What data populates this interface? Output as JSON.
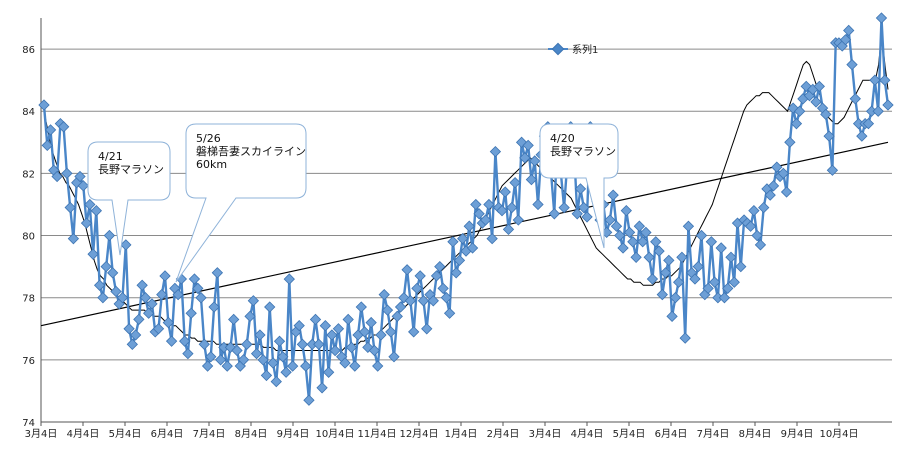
{
  "chart_data": {
    "type": "line",
    "title": "",
    "xlabel": "",
    "ylabel": "",
    "ylim": [
      74,
      87
    ],
    "yticks": [
      74,
      76,
      78,
      80,
      82,
      84,
      86
    ],
    "xtick_labels": [
      "3月4日",
      "4月4日",
      "5月4日",
      "6月4日",
      "7月4日",
      "8月4日",
      "9月4日",
      "10月4日",
      "11月4日",
      "12月4日",
      "1月4日",
      "2月4日",
      "3月4日",
      "4月4日",
      "5月4日",
      "6月4日",
      "7月4日",
      "8月4日",
      "9月4日",
      "10月4日"
    ],
    "grid": "horizontal",
    "legend": {
      "position": "top-center",
      "entries": [
        "系列1"
      ]
    },
    "series": [
      {
        "name": "系列1",
        "color": "#4a86c8",
        "marker": "diamond",
        "values": [
          84.2,
          82.9,
          83.4,
          82.1,
          81.9,
          83.6,
          83.5,
          82.0,
          80.9,
          79.9,
          81.7,
          81.9,
          81.6,
          80.4,
          81.0,
          79.4,
          80.8,
          78.4,
          78.0,
          79.0,
          80.0,
          78.8,
          78.2,
          77.8,
          78.0,
          79.7,
          77.0,
          76.5,
          76.8,
          77.3,
          78.4,
          78.0,
          77.5,
          77.8,
          76.9,
          77.0,
          78.1,
          78.7,
          77.2,
          76.6,
          78.3,
          78.1,
          78.6,
          76.6,
          76.2,
          77.5,
          78.6,
          78.3,
          78.0,
          76.5,
          75.8,
          76.1,
          77.7,
          78.8,
          76.0,
          76.4,
          75.8,
          76.4,
          77.3,
          76.3,
          75.8,
          76.0,
          76.5,
          77.4,
          77.9,
          76.2,
          76.8,
          76.0,
          75.5,
          77.7,
          75.9,
          75.3,
          76.6,
          76.1,
          75.6,
          78.6,
          75.8,
          76.9,
          77.1,
          76.5,
          75.8,
          74.7,
          76.5,
          77.3,
          76.5,
          75.1,
          77.1,
          75.6,
          76.8,
          76.3,
          77.0,
          76.1,
          75.9,
          77.3,
          76.4,
          75.8,
          76.8,
          77.7,
          76.9,
          76.4,
          77.2,
          76.3,
          75.8,
          76.8,
          78.1,
          77.6,
          76.9,
          76.1,
          77.4,
          77.7,
          78.0,
          78.9,
          77.9,
          76.9,
          78.3,
          78.7,
          77.9,
          77.0,
          78.1,
          77.9,
          78.7,
          79.0,
          78.3,
          78.0,
          77.5,
          79.8,
          78.8,
          79.2,
          79.9,
          79.5,
          80.3,
          79.6,
          81.0,
          80.7,
          80.4,
          80.5,
          81.0,
          79.9,
          82.7,
          80.9,
          80.8,
          81.4,
          80.2,
          80.9,
          81.7,
          80.5,
          83.0,
          82.5,
          82.9,
          81.8,
          82.4,
          81.0,
          82.6,
          83.2,
          83.5,
          82.0,
          80.7,
          83.4,
          82.0,
          80.9,
          82.4,
          83.5,
          82.8,
          80.7,
          81.5,
          80.9,
          80.6,
          83.5,
          82.0,
          81.1,
          80.5,
          81.0,
          80.1,
          80.5,
          81.3,
          80.3,
          80.0,
          79.6,
          80.8,
          80.1,
          79.8,
          79.3,
          80.3,
          79.8,
          80.1,
          79.3,
          78.6,
          79.8,
          79.5,
          78.1,
          78.8,
          79.2,
          77.4,
          78.0,
          78.5,
          79.3,
          76.7,
          80.3,
          78.8,
          78.6,
          79.0,
          80.0,
          78.1,
          78.3,
          79.8,
          78.5,
          78.0,
          79.6,
          78.0,
          78.3,
          79.3,
          78.5,
          80.4,
          79.0,
          80.5,
          80.4,
          80.3,
          80.8,
          80.0,
          79.7,
          80.9,
          81.5,
          81.3,
          81.6,
          82.2,
          81.9,
          82.0,
          81.4,
          83.0,
          84.1,
          83.6,
          84.0,
          84.4,
          84.8,
          84.5,
          84.7,
          84.3,
          84.8,
          84.1,
          83.9,
          83.2,
          82.1,
          86.2,
          86.2,
          86.1,
          86.3,
          86.6,
          85.5,
          84.4,
          83.6,
          83.2,
          83.6,
          83.6,
          84.0,
          85.0,
          84.0,
          87.0,
          85.0,
          84.2
        ]
      },
      {
        "name": "",
        "color": "#000000",
        "marker": "none",
        "values": [
          84.0,
          83.5,
          83.0,
          82.6,
          82.3,
          82.0,
          81.9,
          81.7,
          81.6,
          81.4,
          81.2,
          81.0,
          80.7,
          80.4,
          80.0,
          79.6,
          79.2,
          78.9,
          78.7,
          78.6,
          78.4,
          78.3,
          78.2,
          78.1,
          78.0,
          77.9,
          77.8,
          77.7,
          77.6,
          77.6,
          77.6,
          77.6,
          77.6,
          77.5,
          77.5,
          77.4,
          77.4,
          77.4,
          77.3,
          77.2,
          77.2,
          77.1,
          77.1,
          77.0,
          76.9,
          76.8,
          76.8,
          76.7,
          76.7,
          76.6,
          76.6,
          76.6,
          76.6,
          76.6,
          76.6,
          76.5,
          76.5,
          76.5,
          76.5,
          76.5,
          76.5,
          76.5,
          76.5,
          76.5,
          76.5,
          76.5,
          76.5,
          76.5,
          76.5,
          76.5,
          76.4,
          76.4,
          76.4,
          76.4,
          76.3,
          76.3,
          76.3,
          76.3,
          76.3,
          76.3,
          76.3,
          76.3,
          76.3,
          76.3,
          76.3,
          76.3,
          76.3,
          76.3,
          76.3,
          76.3,
          76.3,
          76.3,
          76.3,
          76.3,
          76.3,
          76.3,
          76.4,
          76.4,
          76.4,
          76.5,
          76.5,
          76.6,
          76.6,
          76.7,
          76.7,
          76.8,
          76.8,
          76.9,
          77.0,
          77.1,
          77.2,
          77.3,
          77.4,
          77.5,
          77.6,
          77.7,
          77.8,
          77.9,
          78.0,
          78.1,
          78.2,
          78.3,
          78.4,
          78.5,
          78.6,
          78.7,
          78.8,
          78.9,
          79.0,
          79.1,
          79.2,
          79.3,
          79.4,
          79.5,
          79.6,
          79.7,
          79.8,
          79.9,
          80.0,
          80.2,
          80.4,
          80.6,
          80.8,
          81.0,
          81.2,
          81.4,
          81.6,
          81.7,
          81.8,
          81.9,
          82.0,
          82.1,
          82.2,
          82.3,
          82.4,
          82.5,
          82.4,
          82.3,
          82.2,
          82.1,
          82.0,
          81.9,
          81.8,
          81.7,
          81.6,
          81.5,
          81.4,
          81.3,
          81.2,
          81.0,
          80.8,
          80.6,
          80.4,
          80.2,
          80.0,
          79.8,
          79.6,
          79.5,
          79.4,
          79.3,
          79.2,
          79.1,
          79.0,
          78.9,
          78.8,
          78.7,
          78.6,
          78.6,
          78.5,
          78.5,
          78.5,
          78.4,
          78.4,
          78.4,
          78.4,
          78.5,
          78.5,
          78.6,
          78.6,
          78.7,
          78.7,
          78.8,
          78.9,
          79.0,
          79.2,
          79.4,
          79.6,
          79.8,
          80.0,
          80.2,
          80.4,
          80.6,
          80.8,
          81.0,
          81.3,
          81.6,
          81.9,
          82.2,
          82.5,
          82.8,
          83.1,
          83.4,
          83.7,
          84.0,
          84.2,
          84.3,
          84.4,
          84.5,
          84.5,
          84.6,
          84.6,
          84.6,
          84.5,
          84.4,
          84.3,
          84.2,
          84.1,
          84.0,
          84.3,
          84.6,
          84.9,
          85.2,
          85.5,
          85.6,
          85.5,
          85.2,
          84.9,
          84.6,
          84.3,
          84.0,
          83.8,
          83.7,
          83.6,
          83.6,
          83.7,
          83.8,
          84.0,
          84.2,
          84.4,
          84.6,
          84.8,
          85.0,
          85.0,
          85.0,
          85.0,
          85.0,
          85.5,
          86.5,
          85.5,
          84.7
        ]
      },
      {
        "name": "",
        "type": "trendline",
        "color": "#000000",
        "values_at_ends": [
          77.1,
          83.0
        ]
      }
    ],
    "annotations": [
      {
        "lines": [
          "4/21",
          "長野マラソン"
        ]
      },
      {
        "lines": [
          "5/26",
          "磐梯吾妻スカイライン",
          "60km"
        ]
      },
      {
        "lines": [
          "4/20",
          "長野マラソン"
        ]
      }
    ]
  }
}
